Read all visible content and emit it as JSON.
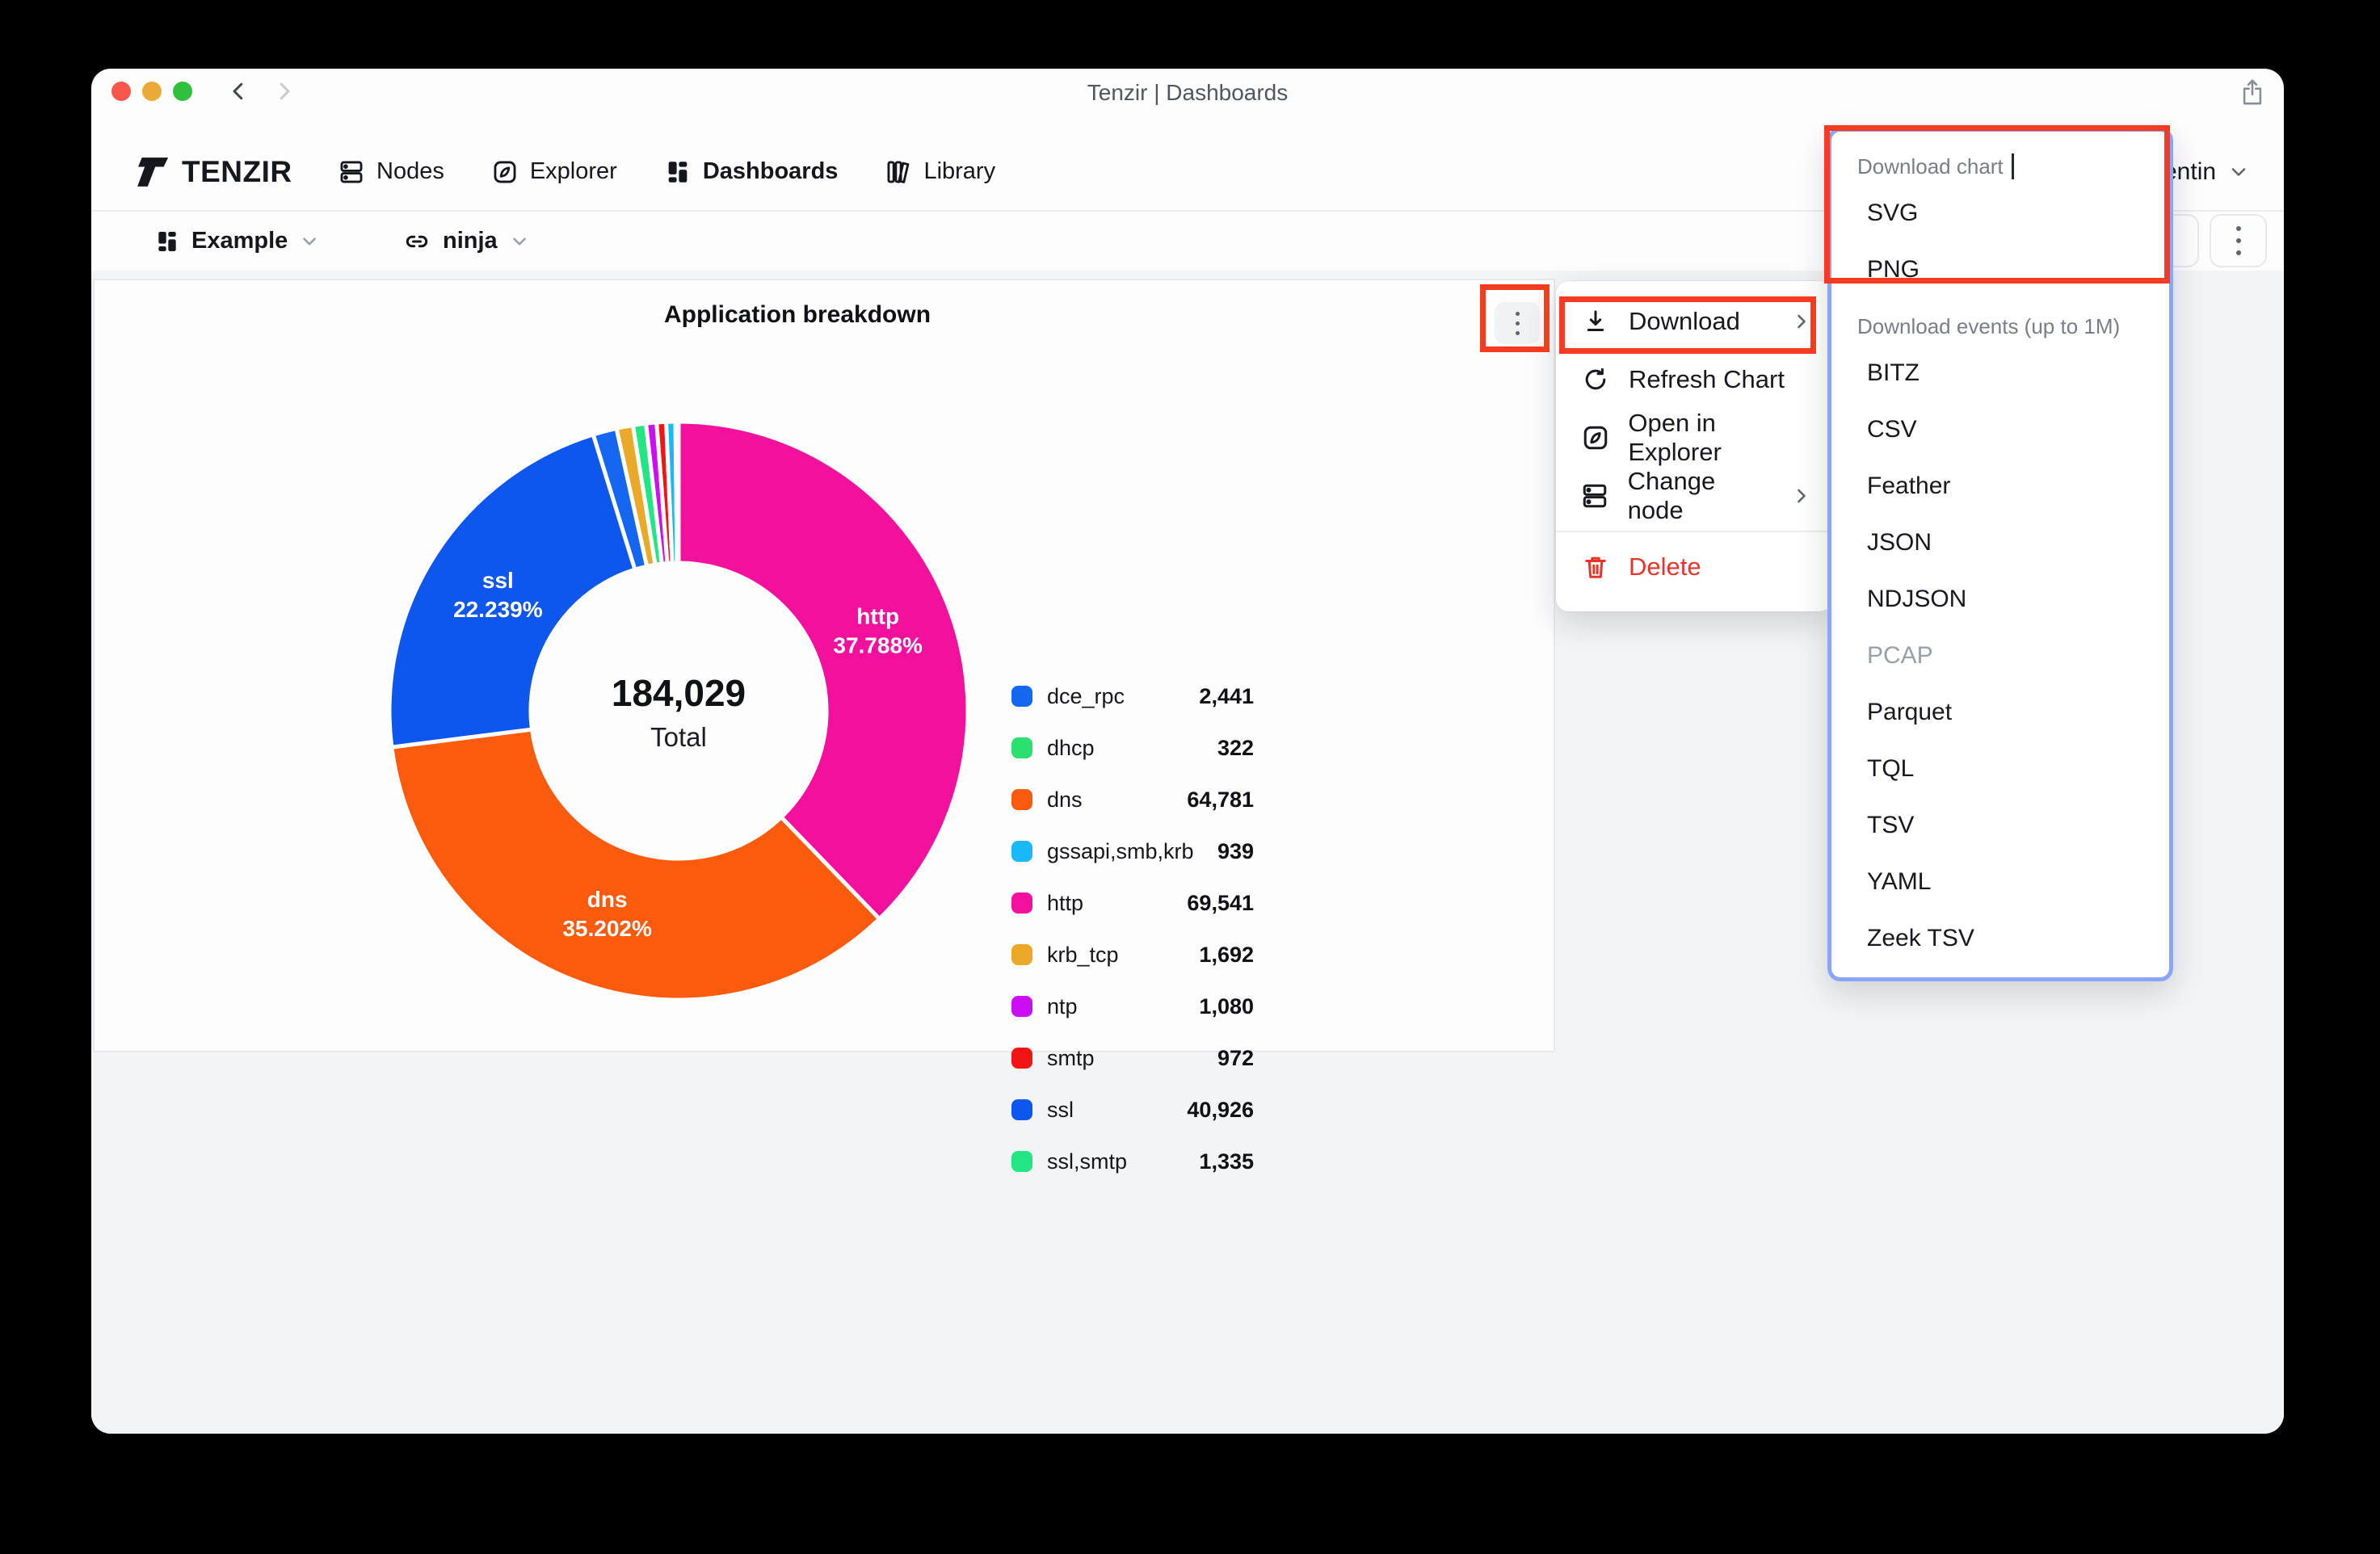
{
  "window_chrome": {
    "title": "Tenzir | Dashboards"
  },
  "brand": {
    "name": "TENZIR"
  },
  "nav": {
    "items": [
      {
        "label": "Nodes",
        "icon": "nodes-icon"
      },
      {
        "label": "Explorer",
        "icon": "explorer-icon"
      },
      {
        "label": "Dashboards",
        "icon": "dashboards-icon",
        "active": true
      },
      {
        "label": "Library",
        "icon": "library-icon"
      }
    ]
  },
  "toolbar": {
    "dashboard": {
      "label": "Example"
    },
    "node": {
      "label": "ninja"
    }
  },
  "user_menu": {
    "label": "entin"
  },
  "card": {
    "title": "Application breakdown"
  },
  "chart_data": {
    "type": "pie",
    "title": "Application breakdown",
    "legend_position": "right",
    "center": {
      "total": "184,029",
      "caption": "Total"
    },
    "total_value": 184029,
    "slices": [
      {
        "name": "http",
        "value": 69541,
        "pct_label": "37.788%",
        "color": "#f3109c",
        "show_label": true
      },
      {
        "name": "dns",
        "value": 64781,
        "pct_label": "35.202%",
        "color": "#fc5a0d",
        "show_label": true
      },
      {
        "name": "ssl",
        "value": 40926,
        "pct_label": "22.239%",
        "color": "#0d57ef",
        "show_label": true
      },
      {
        "name": "dce_rpc",
        "value": 2441,
        "color": "#1567f2"
      },
      {
        "name": "krb_tcp",
        "value": 1692,
        "color": "#eaa928"
      },
      {
        "name": "ssl,smtp",
        "value": 1335,
        "color": "#22e584"
      },
      {
        "name": "ntp",
        "value": 1080,
        "color": "#cb0ff2"
      },
      {
        "name": "smtp",
        "value": 972,
        "color": "#f31414"
      },
      {
        "name": "gssapi,smb,krb",
        "value": 939,
        "color": "#19b8f6"
      },
      {
        "name": "dhcp",
        "value": 322,
        "color": "#2be06e"
      }
    ]
  },
  "legend": {
    "items": [
      {
        "label": "dce_rpc",
        "value": "2,441",
        "color": "#1567f2"
      },
      {
        "label": "dhcp",
        "value": "322",
        "color": "#2be06e"
      },
      {
        "label": "dns",
        "value": "64,781",
        "color": "#fc5a0d"
      },
      {
        "label": "gssapi,smb,krb",
        "value": "939",
        "color": "#19b8f6"
      },
      {
        "label": "http",
        "value": "69,541",
        "color": "#f3109c"
      },
      {
        "label": "krb_tcp",
        "value": "1,692",
        "color": "#eaa928"
      },
      {
        "label": "ntp",
        "value": "1,080",
        "color": "#cb0ff2"
      },
      {
        "label": "smtp",
        "value": "972",
        "color": "#f31414"
      },
      {
        "label": "ssl",
        "value": "40,926",
        "color": "#0d57ef"
      },
      {
        "label": "ssl,smtp",
        "value": "1,335",
        "color": "#22e584"
      }
    ]
  },
  "context_menu": {
    "items": [
      {
        "label": "Download",
        "icon": "download-icon",
        "submenu": true
      },
      {
        "label": "Refresh Chart",
        "icon": "refresh-icon"
      },
      {
        "label": "Open in Explorer",
        "icon": "compass-icon"
      },
      {
        "label": "Change node",
        "icon": "node-icon",
        "submenu": true
      },
      {
        "label": "Delete",
        "icon": "trash-icon",
        "danger": true
      }
    ]
  },
  "submenu": {
    "sections": [
      {
        "header": "Download chart",
        "caret": true,
        "items": [
          {
            "label": "SVG"
          },
          {
            "label": "PNG"
          }
        ]
      },
      {
        "header": "Download events (up to 1M)",
        "items": [
          {
            "label": "BITZ"
          },
          {
            "label": "CSV"
          },
          {
            "label": "Feather"
          },
          {
            "label": "JSON"
          },
          {
            "label": "NDJSON"
          },
          {
            "label": "PCAP",
            "disabled": true
          },
          {
            "label": "Parquet"
          },
          {
            "label": "TQL"
          },
          {
            "label": "TSV"
          },
          {
            "label": "YAML"
          },
          {
            "label": "Zeek TSV"
          }
        ]
      }
    ]
  },
  "annotations": {
    "highlight_color": "#f53b20"
  }
}
